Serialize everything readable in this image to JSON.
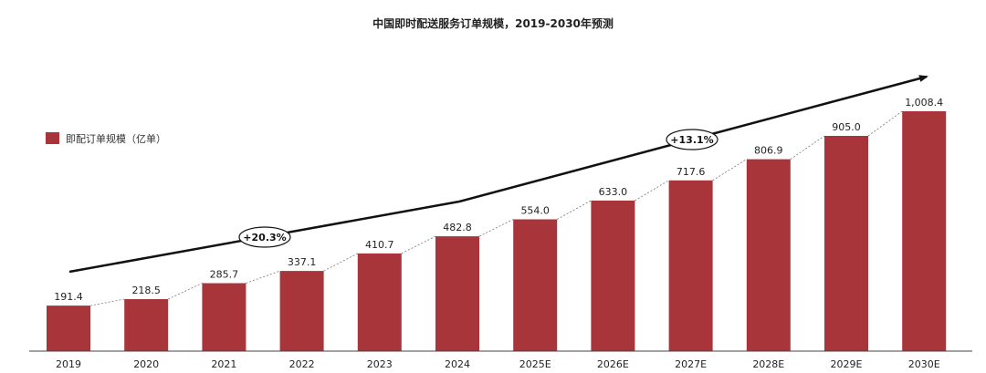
{
  "chart_data": {
    "type": "bar",
    "title": "中国即时配送服务订单规模，2019-2030年预测",
    "categories": [
      "2019",
      "2020",
      "2021",
      "2022",
      "2023",
      "2024",
      "2025E",
      "2026E",
      "2027E",
      "2028E",
      "2029E",
      "2030E"
    ],
    "series": [
      {
        "name": "即配订单规模（亿单）",
        "values": [
          191.4,
          218.5,
          285.7,
          337.1,
          410.7,
          482.8,
          554.0,
          633.0,
          717.6,
          806.9,
          905.0,
          1008.4
        ],
        "labels": [
          "191.4",
          "218.5",
          "285.7",
          "337.1",
          "410.7",
          "482.8",
          "554.0",
          "633.0",
          "717.6",
          "806.9",
          "905.0",
          "1,008.4"
        ]
      }
    ],
    "ylim": [
      0,
      1050
    ],
    "xlabel": "",
    "ylabel": "",
    "grid": false,
    "legend_position": "left",
    "annotations": [
      {
        "text": "+20.3%",
        "period": "2019-2024",
        "from": "2019",
        "to": "2024"
      },
      {
        "text": "+13.1%",
        "period": "2024-2030E",
        "from": "2024",
        "to": "2030E"
      }
    ],
    "colors": {
      "bar": "#a8353a",
      "text": "#222222"
    }
  }
}
